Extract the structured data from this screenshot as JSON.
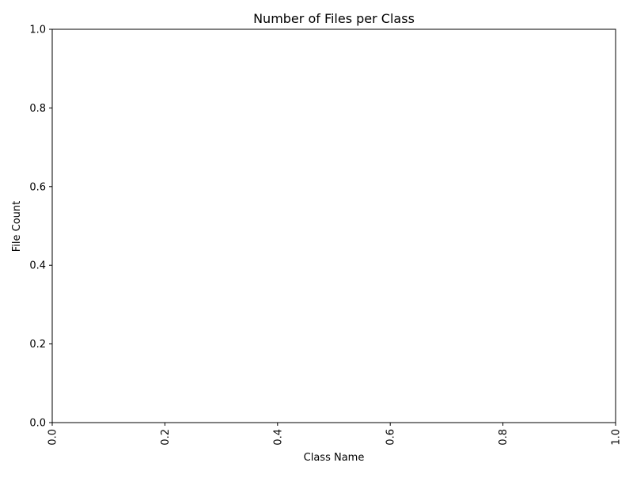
{
  "chart_data": {
    "type": "bar",
    "title": "Number of Files per Class",
    "xlabel": "Class Name",
    "ylabel": "File Count",
    "categories": [],
    "values": [],
    "xlim": [
      0.0,
      1.0
    ],
    "ylim": [
      0.0,
      1.0
    ],
    "x_ticks": [
      "0.0",
      "0.2",
      "0.4",
      "0.6",
      "0.8",
      "1.0"
    ],
    "y_ticks": [
      "0.0",
      "0.2",
      "0.4",
      "0.6",
      "0.8",
      "1.0"
    ],
    "x_tick_rotation": "vertical",
    "grid": false,
    "legend": "none",
    "colors": {
      "axis": "#000000",
      "background": "#ffffff"
    }
  }
}
